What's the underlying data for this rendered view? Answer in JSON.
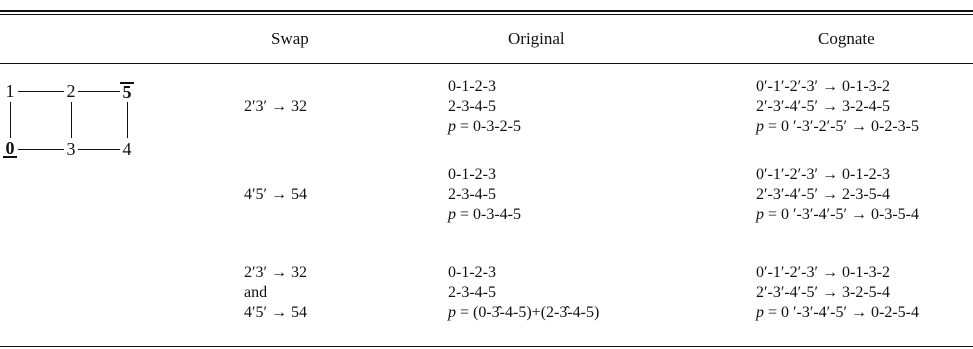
{
  "headers": {
    "swap": "Swap",
    "original": "Original",
    "cognate": "Cognate"
  },
  "graph": {
    "nodes": {
      "n1": "1",
      "n2": "2",
      "n5": "5",
      "n0": "0",
      "n3": "3",
      "n4": "4"
    },
    "emphasized_top": "5",
    "emphasized_bottom": "0"
  },
  "rows": [
    {
      "swap": [
        "2′3′ → 32"
      ],
      "original": [
        "0-1-2-3",
        "2-3-4-5",
        "p = 0-3-2-5"
      ],
      "cognate": [
        "0′-1′-2′-3′ → 0-1-3-2",
        "2′-3′-4′-5′ → 3-2-4-5",
        "p = 0 ′-3′-2′-5′ → 0-2-3-5"
      ]
    },
    {
      "swap": [
        "4′5′ → 54"
      ],
      "original": [
        "0-1-2-3",
        "2-3-4-5",
        "p = 0-3-4-5"
      ],
      "cognate": [
        "0′-1′-2′-3′ → 0-1-2-3",
        "2′-3′-4′-5′ → 2-3-5-4",
        "p = 0 ′-3′-4′-5′ → 0-3-5-4"
      ]
    },
    {
      "swap": [
        "2′3′ → 32",
        "and",
        "4′5′ → 54"
      ],
      "original": [
        "0-1-2-3",
        "2-3-4-5",
        "p = (0-3̂-4-5)+(2-3̂-4-5)"
      ],
      "cognate": [
        "0′-1′-2′-3′ → 0-1-3-2",
        "2′-3′-4′-5′ → 3-2-5-4",
        "p = 0 ′-3′-4′-5′ → 0-2-5-4"
      ]
    }
  ]
}
